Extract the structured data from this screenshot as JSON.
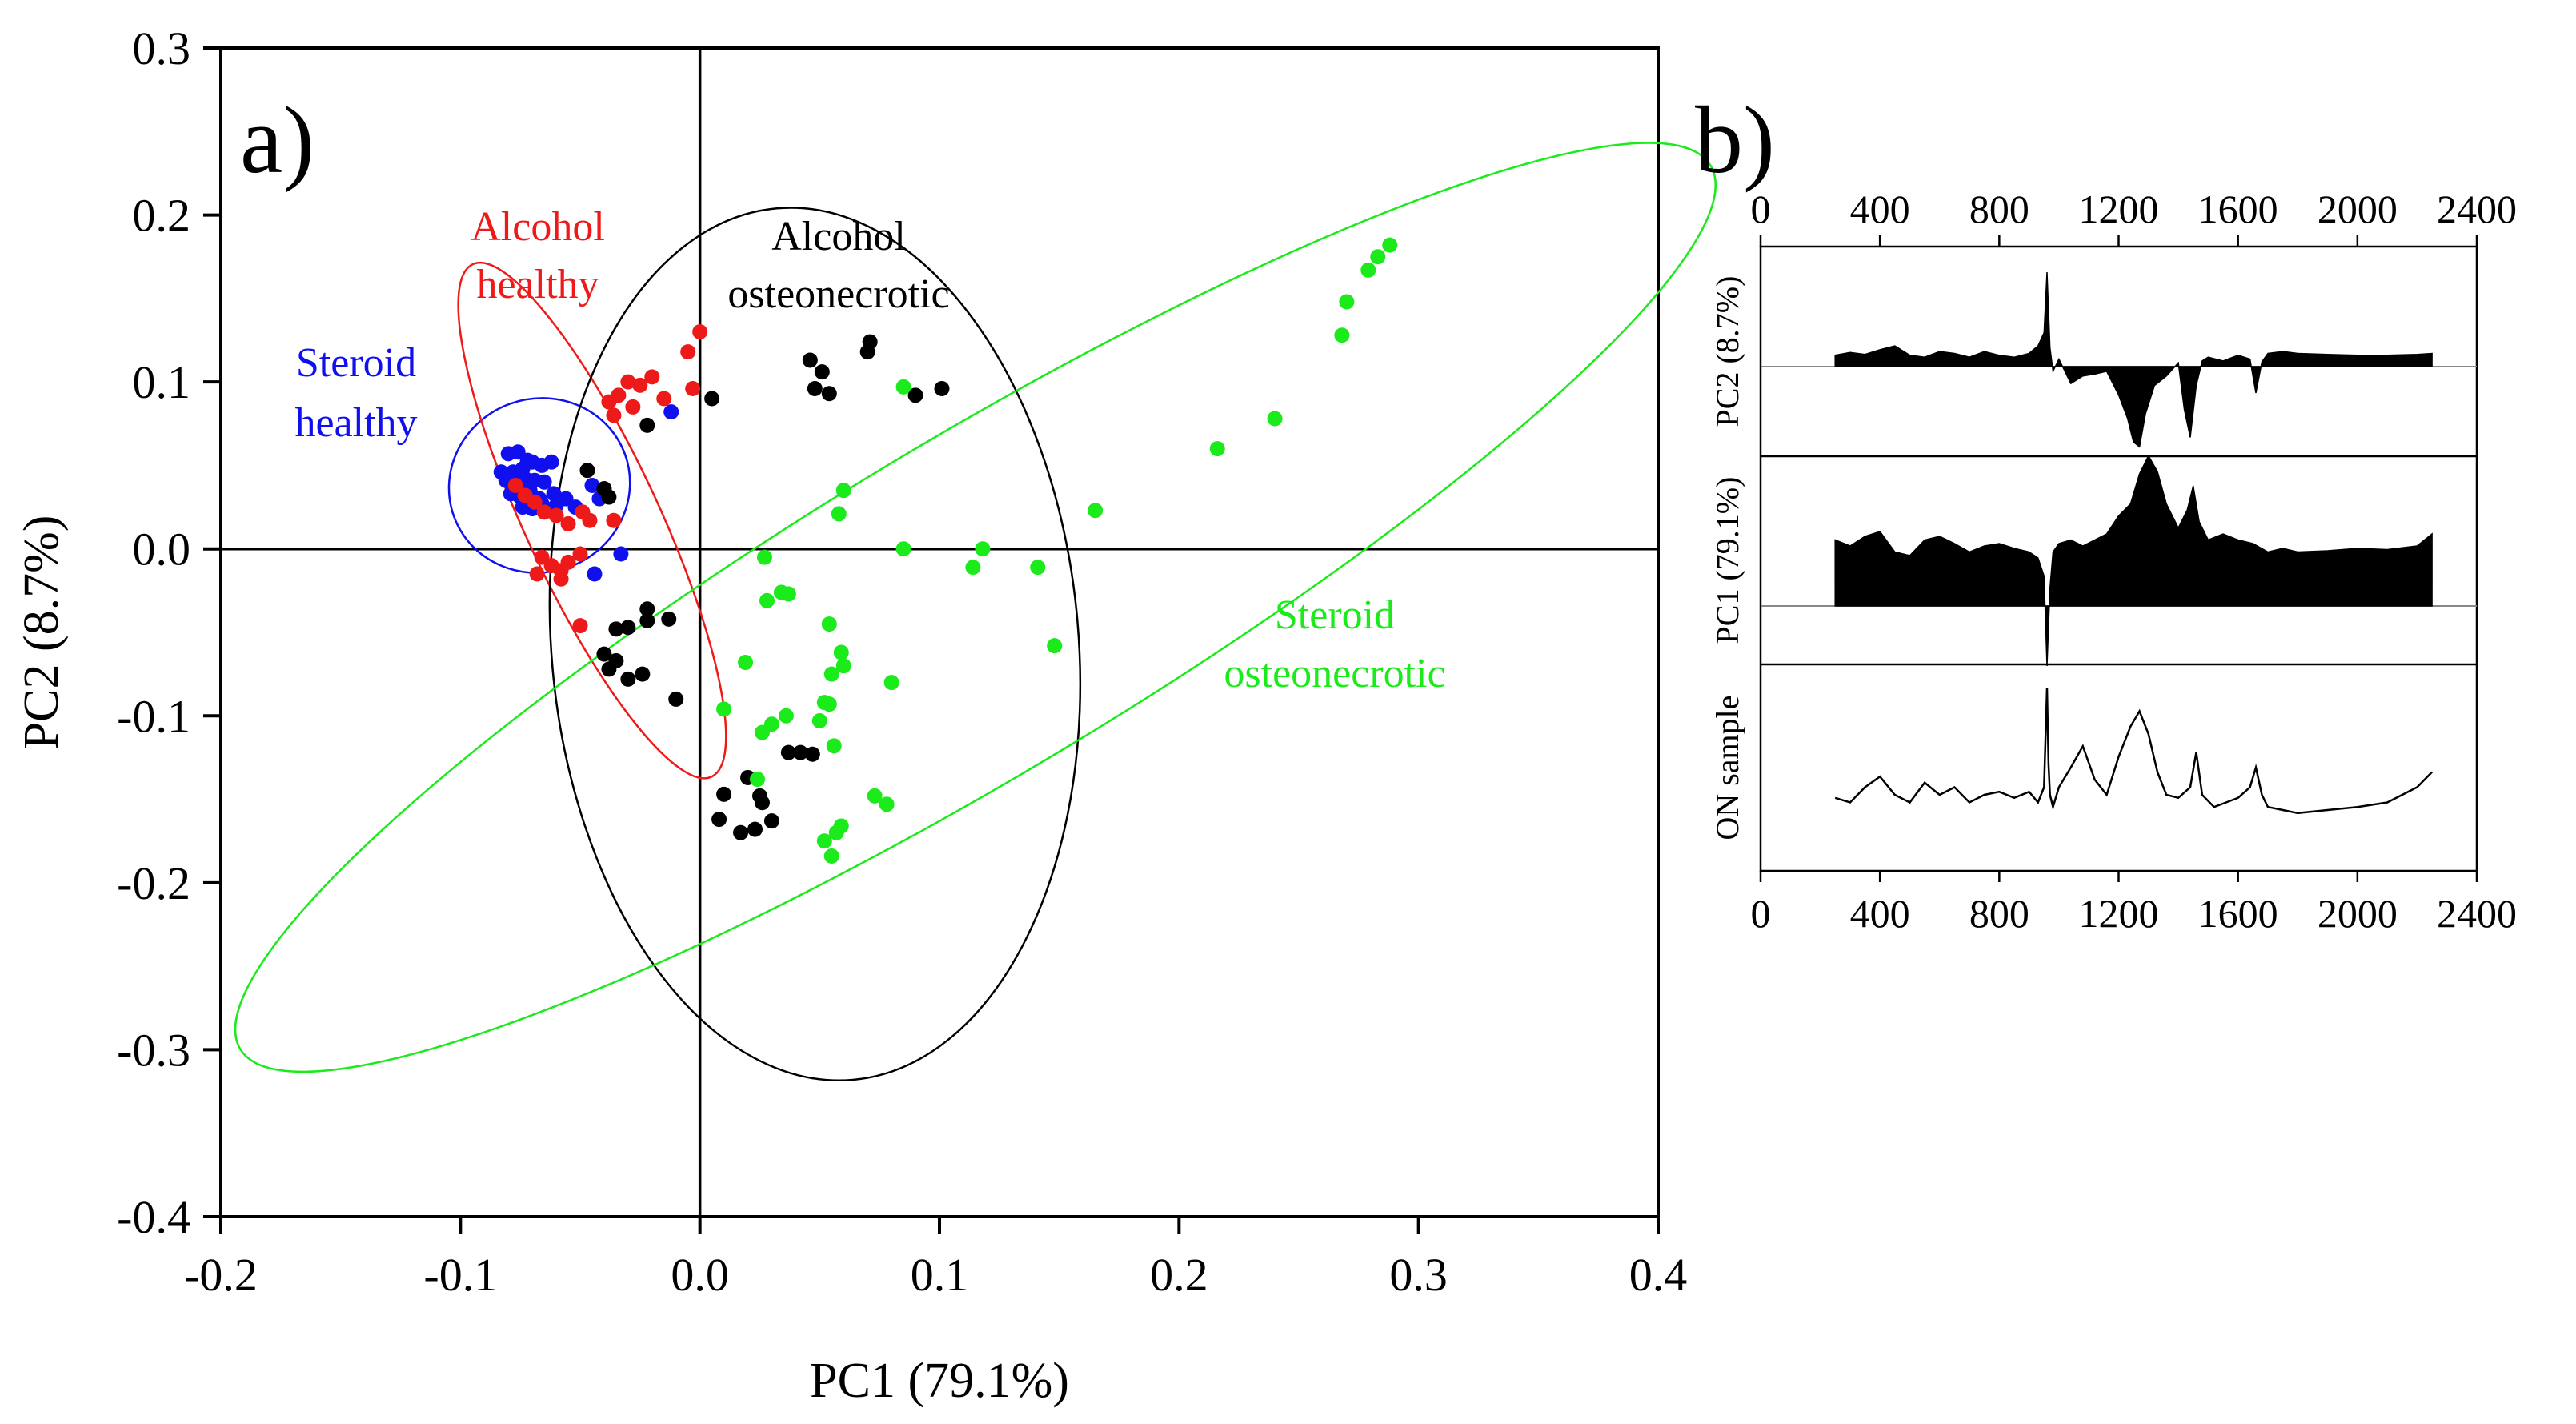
{
  "figure": {
    "panel_a_label": "a)",
    "panel_b_label": "b)"
  },
  "colors": {
    "steroid_healthy": "#1010ee",
    "alcohol_healthy": "#ee1a1a",
    "alcohol_osteonecrotic": "#000000",
    "steroid_osteonecrotic": "#1bea1b",
    "spectrum_fill": "#000000"
  },
  "chart_data": [
    {
      "type": "scatter",
      "panel": "a)",
      "xlabel": "PC1 (79.1%)",
      "ylabel": "PC2 (8.7%)",
      "xlim": [
        -0.2,
        0.4
      ],
      "ylim": [
        -0.4,
        0.3
      ],
      "xticks": [
        "-0.2",
        "-0.1",
        "0.0",
        "0.1",
        "0.2",
        "0.3",
        "0.4"
      ],
      "yticks": [
        "-0.4",
        "-0.3",
        "-0.2",
        "-0.1",
        "0.0",
        "0.1",
        "0.2",
        "0.3"
      ],
      "grid": false,
      "zero_lines": true,
      "series": [
        {
          "name": "Steroid healthy",
          "label_lines": [
            "Steroid",
            "healthy"
          ],
          "color": "#1010ee",
          "ellipse": {
            "cx": -0.067,
            "cy": 0.038,
            "rx": 0.038,
            "ry": 0.052,
            "angle": -20
          },
          "points": [
            [
              -0.08,
              0.057
            ],
            [
              -0.076,
              0.058
            ],
            [
              -0.072,
              0.053
            ],
            [
              -0.083,
              0.046
            ],
            [
              -0.078,
              0.046
            ],
            [
              -0.074,
              0.048
            ],
            [
              -0.07,
              0.052
            ],
            [
              -0.066,
              0.05
            ],
            [
              -0.062,
              0.052
            ],
            [
              -0.081,
              0.041
            ],
            [
              -0.077,
              0.038
            ],
            [
              -0.073,
              0.042
            ],
            [
              -0.069,
              0.041
            ],
            [
              -0.065,
              0.04
            ],
            [
              -0.079,
              0.033
            ],
            [
              -0.075,
              0.031
            ],
            [
              -0.071,
              0.035
            ],
            [
              -0.067,
              0.03
            ],
            [
              -0.061,
              0.033
            ],
            [
              -0.074,
              0.025
            ],
            [
              -0.07,
              0.024
            ],
            [
              -0.066,
              0.027
            ],
            [
              -0.06,
              0.026
            ],
            [
              -0.056,
              0.03
            ],
            [
              -0.052,
              0.025
            ],
            [
              -0.045,
              0.038
            ],
            [
              -0.04,
              0.036
            ],
            [
              -0.042,
              0.03
            ],
            [
              -0.012,
              0.082
            ],
            [
              -0.033,
              -0.003
            ],
            [
              -0.044,
              -0.015
            ]
          ]
        },
        {
          "name": "Alcohol healthy",
          "label_lines": [
            "Alcohol",
            "healthy"
          ],
          "color": "#ee1a1a",
          "ellipse": {
            "cx": -0.045,
            "cy": 0.017,
            "rx": 0.118,
            "ry": 0.04,
            "angle": 65
          },
          "points": [
            [
              0.0,
              0.13
            ],
            [
              -0.005,
              0.118
            ],
            [
              -0.02,
              0.103
            ],
            [
              -0.025,
              0.098
            ],
            [
              -0.03,
              0.1
            ],
            [
              -0.034,
              0.092
            ],
            [
              -0.038,
              0.088
            ],
            [
              -0.028,
              0.085
            ],
            [
              -0.036,
              0.08
            ],
            [
              -0.015,
              0.09
            ],
            [
              -0.003,
              0.096
            ],
            [
              -0.077,
              0.038
            ],
            [
              -0.073,
              0.032
            ],
            [
              -0.069,
              0.028
            ],
            [
              -0.065,
              0.022
            ],
            [
              -0.06,
              0.02
            ],
            [
              -0.055,
              0.015
            ],
            [
              -0.049,
              0.022
            ],
            [
              -0.046,
              0.017
            ],
            [
              -0.036,
              0.017
            ],
            [
              -0.066,
              -0.005
            ],
            [
              -0.062,
              -0.01
            ],
            [
              -0.058,
              -0.013
            ],
            [
              -0.068,
              -0.015
            ],
            [
              -0.055,
              -0.008
            ],
            [
              -0.05,
              -0.003
            ],
            [
              -0.058,
              -0.018
            ],
            [
              -0.05,
              -0.046
            ]
          ]
        },
        {
          "name": "Alcohol osteonecrotic",
          "label_lines": [
            "Alcohol",
            "osteonecrotic"
          ],
          "color": "#000000",
          "ellipse": {
            "cx": 0.048,
            "cy": -0.057,
            "rx": 0.11,
            "ry": 0.262,
            "angle": -5
          },
          "points": [
            [
              0.071,
              0.124
            ],
            [
              0.07,
              0.118
            ],
            [
              0.046,
              0.113
            ],
            [
              0.051,
              0.106
            ],
            [
              0.048,
              0.096
            ],
            [
              0.054,
              0.093
            ],
            [
              0.09,
              0.092
            ],
            [
              0.101,
              0.096
            ],
            [
              0.005,
              0.09
            ],
            [
              -0.022,
              0.074
            ],
            [
              -0.047,
              0.047
            ],
            [
              -0.04,
              0.036
            ],
            [
              -0.038,
              0.031
            ],
            [
              -0.035,
              -0.048
            ],
            [
              -0.03,
              -0.047
            ],
            [
              -0.022,
              -0.036
            ],
            [
              -0.013,
              -0.042
            ],
            [
              -0.022,
              -0.043
            ],
            [
              -0.04,
              -0.063
            ],
            [
              -0.038,
              -0.072
            ],
            [
              -0.035,
              -0.067
            ],
            [
              -0.03,
              -0.078
            ],
            [
              -0.024,
              -0.075
            ],
            [
              -0.01,
              -0.09
            ],
            [
              0.037,
              -0.122
            ],
            [
              0.042,
              -0.122
            ],
            [
              0.047,
              -0.123
            ],
            [
              0.02,
              -0.137
            ],
            [
              0.025,
              -0.148
            ],
            [
              0.01,
              -0.147
            ],
            [
              0.026,
              -0.152
            ],
            [
              0.008,
              -0.162
            ],
            [
              0.017,
              -0.17
            ],
            [
              0.023,
              -0.168
            ],
            [
              0.03,
              -0.163
            ]
          ]
        },
        {
          "name": "Steroid osteonecrotic",
          "label_lines": [
            "Steroid",
            "osteonecrotic"
          ],
          "color": "#1bea1b",
          "ellipse": {
            "cx": 0.115,
            "cy": -0.035,
            "rx": 0.358,
            "ry": 0.1,
            "angle": -31
          },
          "points": [
            [
              0.288,
              0.182
            ],
            [
              0.283,
              0.175
            ],
            [
              0.279,
              0.167
            ],
            [
              0.27,
              0.148
            ],
            [
              0.268,
              0.128
            ],
            [
              0.24,
              0.078
            ],
            [
              0.216,
              0.06
            ],
            [
              0.165,
              0.023
            ],
            [
              0.085,
              0.097
            ],
            [
              0.06,
              0.035
            ],
            [
              0.058,
              0.021
            ],
            [
              0.085,
              0.0
            ],
            [
              0.118,
              0.0
            ],
            [
              0.114,
              -0.011
            ],
            [
              0.141,
              -0.011
            ],
            [
              0.148,
              -0.058
            ],
            [
              0.027,
              -0.005
            ],
            [
              0.034,
              -0.026
            ],
            [
              0.037,
              -0.027
            ],
            [
              0.028,
              -0.031
            ],
            [
              0.054,
              -0.045
            ],
            [
              0.059,
              -0.062
            ],
            [
              0.055,
              -0.075
            ],
            [
              0.06,
              -0.07
            ],
            [
              0.08,
              -0.08
            ],
            [
              0.019,
              -0.068
            ],
            [
              0.01,
              -0.096
            ],
            [
              0.036,
              -0.1
            ],
            [
              0.03,
              -0.105
            ],
            [
              0.05,
              -0.103
            ],
            [
              0.054,
              -0.093
            ],
            [
              0.052,
              -0.092
            ],
            [
              0.026,
              -0.11
            ],
            [
              0.024,
              -0.138
            ],
            [
              0.056,
              -0.118
            ],
            [
              0.073,
              -0.148
            ],
            [
              0.078,
              -0.153
            ],
            [
              0.059,
              -0.166
            ],
            [
              0.052,
              -0.175
            ],
            [
              0.057,
              -0.17
            ],
            [
              0.055,
              -0.184
            ]
          ]
        }
      ]
    },
    {
      "type": "area",
      "panel": "b)",
      "xlim": [
        0,
        2400
      ],
      "xticks": [
        "0",
        "400",
        "800",
        "1200",
        "1600",
        "2000",
        "2400"
      ],
      "x_start": 250,
      "x_end": 2250,
      "grid": false,
      "series": [
        {
          "name": "PC2 (8.7%)",
          "x": [
            250,
            300,
            350,
            400,
            450,
            500,
            550,
            600,
            650,
            700,
            750,
            800,
            850,
            900,
            930,
            950,
            960,
            970,
            980,
            1000,
            1040,
            1080,
            1120,
            1160,
            1200,
            1230,
            1250,
            1270,
            1290,
            1320,
            1360,
            1400,
            1420,
            1440,
            1460,
            1480,
            1500,
            1550,
            1600,
            1640,
            1660,
            1680,
            1700,
            1750,
            1800,
            1900,
            2000,
            2100,
            2200,
            2250
          ],
          "values": [
            0.12,
            0.15,
            0.13,
            0.18,
            0.22,
            0.12,
            0.1,
            0.16,
            0.14,
            0.1,
            0.16,
            0.12,
            0.1,
            0.14,
            0.22,
            0.36,
            1.0,
            0.2,
            -0.05,
            0.08,
            -0.18,
            -0.1,
            -0.08,
            -0.05,
            -0.3,
            -0.55,
            -0.8,
            -0.85,
            -0.5,
            -0.2,
            -0.1,
            0.04,
            -0.45,
            -0.75,
            -0.2,
            0.06,
            0.1,
            0.06,
            0.12,
            0.08,
            -0.28,
            0.05,
            0.14,
            0.16,
            0.14,
            0.13,
            0.12,
            0.12,
            0.13,
            0.14
          ]
        },
        {
          "name": "PC1 (79.1%)",
          "x": [
            250,
            300,
            350,
            400,
            450,
            500,
            550,
            600,
            650,
            700,
            750,
            800,
            850,
            900,
            930,
            950,
            960,
            970,
            980,
            1000,
            1040,
            1080,
            1120,
            1160,
            1200,
            1240,
            1270,
            1300,
            1330,
            1360,
            1400,
            1430,
            1450,
            1470,
            1500,
            1550,
            1600,
            1650,
            1700,
            1750,
            1800,
            1900,
            2000,
            2100,
            2200,
            2250
          ],
          "values": [
            0.55,
            0.5,
            0.58,
            0.62,
            0.45,
            0.42,
            0.55,
            0.58,
            0.52,
            0.45,
            0.5,
            0.52,
            0.48,
            0.45,
            0.4,
            0.25,
            -0.5,
            0.15,
            0.45,
            0.52,
            0.55,
            0.5,
            0.55,
            0.6,
            0.75,
            0.85,
            1.1,
            1.25,
            1.12,
            0.85,
            0.65,
            0.8,
            1.0,
            0.7,
            0.55,
            0.6,
            0.55,
            0.52,
            0.45,
            0.48,
            0.45,
            0.46,
            0.48,
            0.47,
            0.5,
            0.6
          ]
        },
        {
          "name": "ON sample",
          "x": [
            250,
            300,
            350,
            400,
            450,
            500,
            550,
            600,
            650,
            700,
            750,
            800,
            850,
            900,
            930,
            950,
            960,
            965,
            970,
            980,
            1000,
            1040,
            1080,
            1120,
            1160,
            1200,
            1240,
            1270,
            1300,
            1330,
            1360,
            1400,
            1440,
            1460,
            1480,
            1520,
            1560,
            1600,
            1640,
            1660,
            1680,
            1700,
            1750,
            1800,
            1900,
            2000,
            2100,
            2200,
            2250
          ],
          "values": [
            0.28,
            0.25,
            0.35,
            0.42,
            0.3,
            0.25,
            0.38,
            0.3,
            0.35,
            0.25,
            0.3,
            0.32,
            0.28,
            0.32,
            0.25,
            0.35,
            1.0,
            0.5,
            0.3,
            0.22,
            0.35,
            0.48,
            0.62,
            0.4,
            0.3,
            0.55,
            0.75,
            0.85,
            0.7,
            0.45,
            0.3,
            0.28,
            0.35,
            0.58,
            0.3,
            0.22,
            0.25,
            0.28,
            0.35,
            0.48,
            0.3,
            0.22,
            0.2,
            0.18,
            0.2,
            0.22,
            0.25,
            0.35,
            0.45
          ]
        }
      ]
    }
  ]
}
